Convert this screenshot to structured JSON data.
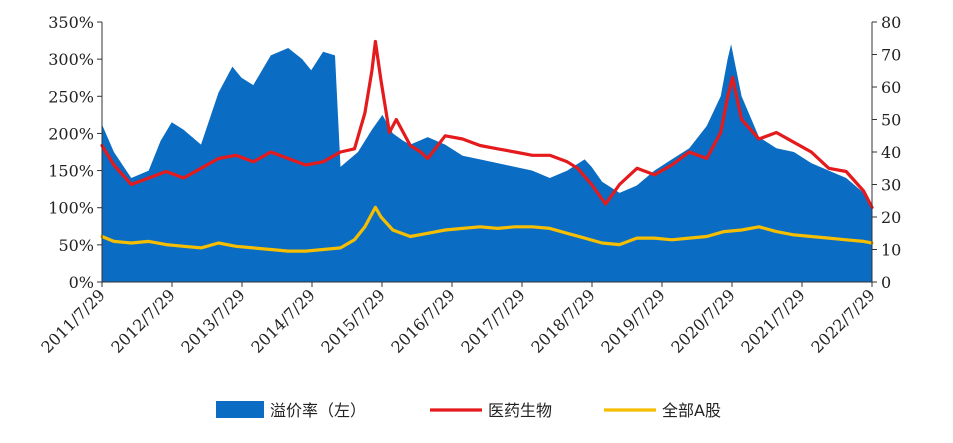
{
  "chart_data": {
    "type": "area",
    "title": "",
    "left_axis": {
      "ylim": [
        0,
        350
      ],
      "ticks": [
        "0%",
        "50%",
        "100%",
        "150%",
        "200%",
        "250%",
        "300%",
        "350%"
      ]
    },
    "right_axis": {
      "ylim": [
        0,
        80
      ],
      "ticks": [
        "0",
        "10",
        "20",
        "30",
        "40",
        "50",
        "60",
        "70",
        "80"
      ]
    },
    "x_tick_labels": [
      "2011/7/29",
      "2012/7/29",
      "2013/7/29",
      "2014/7/29",
      "2015/7/29",
      "2016/7/29",
      "2017/7/29",
      "2018/7/29",
      "2019/7/29",
      "2020/7/29",
      "2021/7/29",
      "2022/7/29"
    ],
    "grid": false,
    "legend_position": "bottom",
    "series": [
      {
        "name": "溢价率（左）",
        "type": "area",
        "axis": "left",
        "color": "#0A6CC2",
        "unit": "%",
        "x": [
          2011.58,
          2011.75,
          2012.0,
          2012.25,
          2012.42,
          2012.58,
          2012.75,
          2013.0,
          2013.25,
          2013.45,
          2013.58,
          2013.75,
          2014.0,
          2014.25,
          2014.45,
          2014.58,
          2014.75,
          2014.92,
          2015.0,
          2015.25,
          2015.45,
          2015.6,
          2015.75,
          2015.9,
          2016.0,
          2016.25,
          2016.5,
          2016.75,
          2017.0,
          2017.25,
          2017.5,
          2017.75,
          2018.0,
          2018.25,
          2018.5,
          2018.6,
          2018.75,
          2019.0,
          2019.25,
          2019.5,
          2019.75,
          2020.0,
          2020.25,
          2020.45,
          2020.55,
          2020.6,
          2020.75,
          2021.0,
          2021.25,
          2021.5,
          2021.75,
          2022.0,
          2022.25,
          2022.5,
          2022.62
        ],
        "values": [
          212,
          175,
          140,
          150,
          190,
          215,
          205,
          185,
          255,
          290,
          275,
          265,
          305,
          315,
          300,
          285,
          310,
          305,
          155,
          175,
          205,
          225,
          200,
          190,
          185,
          195,
          185,
          170,
          165,
          160,
          155,
          150,
          140,
          150,
          165,
          155,
          135,
          120,
          130,
          150,
          165,
          180,
          210,
          250,
          300,
          320,
          250,
          195,
          180,
          175,
          160,
          150,
          140,
          120,
          100
        ]
      },
      {
        "name": "医药生物",
        "type": "line",
        "axis": "right",
        "color": "#E41A1C",
        "x": [
          2011.58,
          2011.75,
          2012.0,
          2012.25,
          2012.5,
          2012.75,
          2013.0,
          2013.25,
          2013.5,
          2013.75,
          2014.0,
          2014.25,
          2014.5,
          2014.75,
          2015.0,
          2015.2,
          2015.35,
          2015.45,
          2015.5,
          2015.58,
          2015.7,
          2015.8,
          2016.0,
          2016.15,
          2016.25,
          2016.5,
          2016.75,
          2017.0,
          2017.25,
          2017.5,
          2017.75,
          2018.0,
          2018.25,
          2018.4,
          2018.6,
          2018.8,
          2019.0,
          2019.25,
          2019.5,
          2019.75,
          2020.0,
          2020.25,
          2020.45,
          2020.55,
          2020.62,
          2020.75,
          2021.0,
          2021.25,
          2021.5,
          2021.75,
          2022.0,
          2022.25,
          2022.5,
          2022.62
        ],
        "values": [
          42,
          36,
          30,
          32,
          34,
          32,
          35,
          38,
          39,
          37,
          40,
          38,
          36,
          37,
          40,
          41,
          52,
          65,
          74,
          62,
          46,
          50,
          42,
          40,
          38,
          45,
          44,
          42,
          41,
          40,
          39,
          39,
          37,
          35,
          30,
          24,
          30,
          35,
          33,
          36,
          40,
          38,
          46,
          57,
          63,
          50,
          44,
          46,
          43,
          40,
          35,
          34,
          28,
          23
        ]
      },
      {
        "name": "全部A股",
        "type": "line",
        "axis": "right",
        "color": "#F6BE00",
        "x": [
          2011.58,
          2011.75,
          2012.0,
          2012.25,
          2012.5,
          2012.75,
          2013.0,
          2013.25,
          2013.5,
          2013.75,
          2014.0,
          2014.25,
          2014.5,
          2014.75,
          2015.0,
          2015.2,
          2015.35,
          2015.45,
          2015.5,
          2015.58,
          2015.75,
          2016.0,
          2016.25,
          2016.5,
          2016.75,
          2017.0,
          2017.25,
          2017.5,
          2017.75,
          2018.0,
          2018.25,
          2018.5,
          2018.75,
          2019.0,
          2019.25,
          2019.5,
          2019.75,
          2020.0,
          2020.25,
          2020.5,
          2020.75,
          2021.0,
          2021.25,
          2021.5,
          2021.75,
          2022.0,
          2022.25,
          2022.5,
          2022.62
        ],
        "values": [
          14,
          12.5,
          12,
          12.5,
          11.5,
          11,
          10.5,
          12,
          11,
          10.5,
          10,
          9.5,
          9.5,
          10,
          10.5,
          13,
          17,
          21,
          23,
          20,
          16,
          14,
          15,
          16,
          16.5,
          17,
          16.5,
          17,
          17,
          16.5,
          15,
          13.5,
          12,
          11.5,
          13.5,
          13.5,
          13,
          13.5,
          14,
          15.5,
          16,
          17,
          15.5,
          14.5,
          14,
          13.5,
          13,
          12.5,
          12
        ]
      }
    ]
  }
}
